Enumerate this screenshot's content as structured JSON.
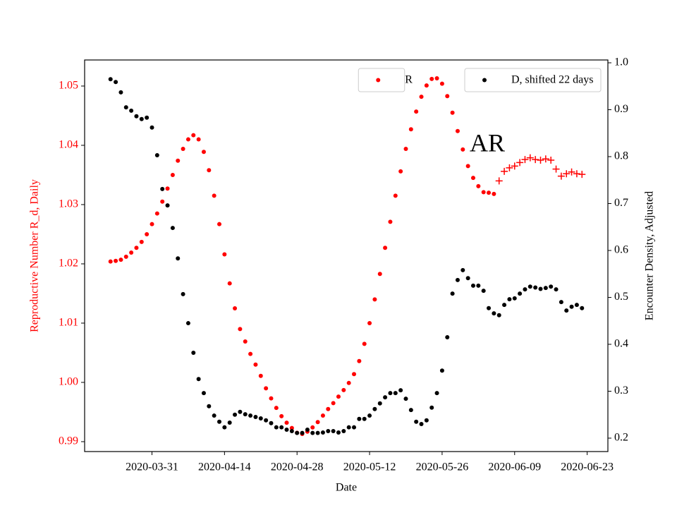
{
  "chart_data": {
    "type": "scatter",
    "xlabel": "Date",
    "ylabel": "Reproductive Number R_d, Daily",
    "y2label": "Encounter Density, Adjusted",
    "annotations": [
      "AR"
    ],
    "x": [
      "2020-03-23",
      "2020-03-24",
      "2020-03-25",
      "2020-03-26",
      "2020-03-27",
      "2020-03-28",
      "2020-03-29",
      "2020-03-30",
      "2020-03-31",
      "2020-04-01",
      "2020-04-02",
      "2020-04-03",
      "2020-04-04",
      "2020-04-05",
      "2020-04-06",
      "2020-04-07",
      "2020-04-08",
      "2020-04-09",
      "2020-04-10",
      "2020-04-11",
      "2020-04-12",
      "2020-04-13",
      "2020-04-14",
      "2020-04-15",
      "2020-04-16",
      "2020-04-17",
      "2020-04-18",
      "2020-04-19",
      "2020-04-20",
      "2020-04-21",
      "2020-04-22",
      "2020-04-23",
      "2020-04-24",
      "2020-04-25",
      "2020-04-26",
      "2020-04-27",
      "2020-04-28",
      "2020-04-29",
      "2020-04-30",
      "2020-05-01",
      "2020-05-02",
      "2020-05-03",
      "2020-05-04",
      "2020-05-05",
      "2020-05-06",
      "2020-05-07",
      "2020-05-08",
      "2020-05-09",
      "2020-05-10",
      "2020-05-11",
      "2020-05-12",
      "2020-05-13",
      "2020-05-14",
      "2020-05-15",
      "2020-05-16",
      "2020-05-17",
      "2020-05-18",
      "2020-05-19",
      "2020-05-20",
      "2020-05-21",
      "2020-05-22",
      "2020-05-23",
      "2020-05-24",
      "2020-05-25",
      "2020-05-26",
      "2020-05-27",
      "2020-05-28",
      "2020-05-29",
      "2020-05-30",
      "2020-05-31",
      "2020-06-01",
      "2020-06-02",
      "2020-06-03",
      "2020-06-04",
      "2020-06-05",
      "2020-06-06",
      "2020-06-07",
      "2020-06-08",
      "2020-06-09",
      "2020-06-10",
      "2020-06-11",
      "2020-06-12",
      "2020-06-13",
      "2020-06-14",
      "2020-06-15",
      "2020-06-16",
      "2020-06-17",
      "2020-06-18",
      "2020-06-19",
      "2020-06-20",
      "2020-06-21",
      "2020-06-22"
    ],
    "series": [
      {
        "name": "R",
        "color": "#ff0000",
        "marker": "dot",
        "legend_loc": "upper center",
        "values": [
          1.0204,
          1.0205,
          1.0207,
          1.0212,
          1.0219,
          1.0227,
          1.0237,
          1.025,
          1.0267,
          1.0285,
          1.0305,
          1.0327,
          1.035,
          1.0374,
          1.0394,
          1.041,
          1.0417,
          1.041,
          1.0389,
          1.0358,
          1.0315,
          1.0267,
          1.0216,
          1.0167,
          1.0125,
          1.009,
          1.0069,
          1.0048,
          1.003,
          1.0011,
          0.999,
          0.9973,
          0.9957,
          0.9943,
          0.9932,
          0.9923,
          0.9915,
          0.9913,
          0.9917,
          0.9924,
          0.9933,
          0.9944,
          0.9955,
          0.9965,
          0.9976,
          0.9987,
          0.9999,
          1.0014,
          1.0036,
          1.0065,
          1.01,
          1.014,
          1.0183,
          1.0227,
          1.0271,
          1.0315,
          1.0356,
          1.0394,
          1.0427,
          1.0457,
          1.0482,
          1.0501,
          1.0512,
          1.0513,
          1.0504,
          1.0483,
          1.0455,
          1.0424,
          1.0393,
          1.0365,
          1.0345,
          1.0331,
          1.0321,
          1.032,
          1.0318,
          null,
          null,
          null,
          null,
          null,
          null,
          null,
          null,
          null,
          null,
          null,
          null,
          null,
          null,
          null,
          null,
          null
        ]
      },
      {
        "color": "#ff0000",
        "marker": "plus",
        "values": [
          null,
          null,
          null,
          null,
          null,
          null,
          null,
          null,
          null,
          null,
          null,
          null,
          null,
          null,
          null,
          null,
          null,
          null,
          null,
          null,
          null,
          null,
          null,
          null,
          null,
          null,
          null,
          null,
          null,
          null,
          null,
          null,
          null,
          null,
          null,
          null,
          null,
          null,
          null,
          null,
          null,
          null,
          null,
          null,
          null,
          null,
          null,
          null,
          null,
          null,
          null,
          null,
          null,
          null,
          null,
          null,
          null,
          null,
          null,
          null,
          null,
          null,
          null,
          null,
          null,
          null,
          null,
          null,
          null,
          null,
          null,
          null,
          null,
          null,
          null,
          1.034,
          1.0356,
          1.0362,
          1.0365,
          1.0371,
          1.0376,
          1.0379,
          1.0376,
          1.0375,
          1.0377,
          1.0375,
          1.036,
          1.0348,
          1.0352,
          1.0355,
          1.0352,
          1.0351
        ]
      },
      {
        "name": "D, shifted 22 days",
        "color": "#000000",
        "marker": "dot",
        "axis": "y2",
        "legend_loc": "upper right",
        "values": [
          0.965,
          0.959,
          0.937,
          0.905,
          0.898,
          0.886,
          0.88,
          0.883,
          0.862,
          0.803,
          0.731,
          0.696,
          0.648,
          0.583,
          0.507,
          0.445,
          0.382,
          0.326,
          0.296,
          0.268,
          0.248,
          0.235,
          0.223,
          0.233,
          0.25,
          0.256,
          0.251,
          0.248,
          0.245,
          0.242,
          0.238,
          0.232,
          0.223,
          0.223,
          0.218,
          0.215,
          0.211,
          0.211,
          0.218,
          0.211,
          0.211,
          0.212,
          0.215,
          0.215,
          0.212,
          0.215,
          0.223,
          0.223,
          0.241,
          0.241,
          0.248,
          0.262,
          0.274,
          0.287,
          0.296,
          0.296,
          0.302,
          0.284,
          0.26,
          0.235,
          0.23,
          0.238,
          0.265,
          0.296,
          0.344,
          0.415,
          0.508,
          0.537,
          0.558,
          0.541,
          0.525,
          0.525,
          0.514,
          0.477,
          0.466,
          0.462,
          0.484,
          0.496,
          0.498,
          0.508,
          0.517,
          0.523,
          0.521,
          0.518,
          0.52,
          0.523,
          0.517,
          0.49,
          0.472,
          0.48,
          0.484,
          0.477
        ]
      }
    ],
    "xlim": [
      "2020-03-18",
      "2020-06-27"
    ],
    "xticks": [
      "2020-03-31",
      "2020-04-14",
      "2020-04-28",
      "2020-05-12",
      "2020-05-26",
      "2020-06-09",
      "2020-06-23"
    ],
    "ylim": [
      0.98833,
      1.0544
    ],
    "yticks": [
      0.99,
      {
        "value": 1,
        "label": "1.00"
      },
      1.01,
      1.02,
      1.03,
      1.04,
      1.05
    ],
    "ylabel_color": "#ff0000",
    "y2lim": [
      0.1714,
      1.006
    ],
    "y2ticks": [
      0.2,
      0.3,
      0.4,
      0.5,
      0.6,
      0.7,
      0.8,
      0.9,
      {
        "value": 1,
        "label": "1.0"
      }
    ]
  }
}
